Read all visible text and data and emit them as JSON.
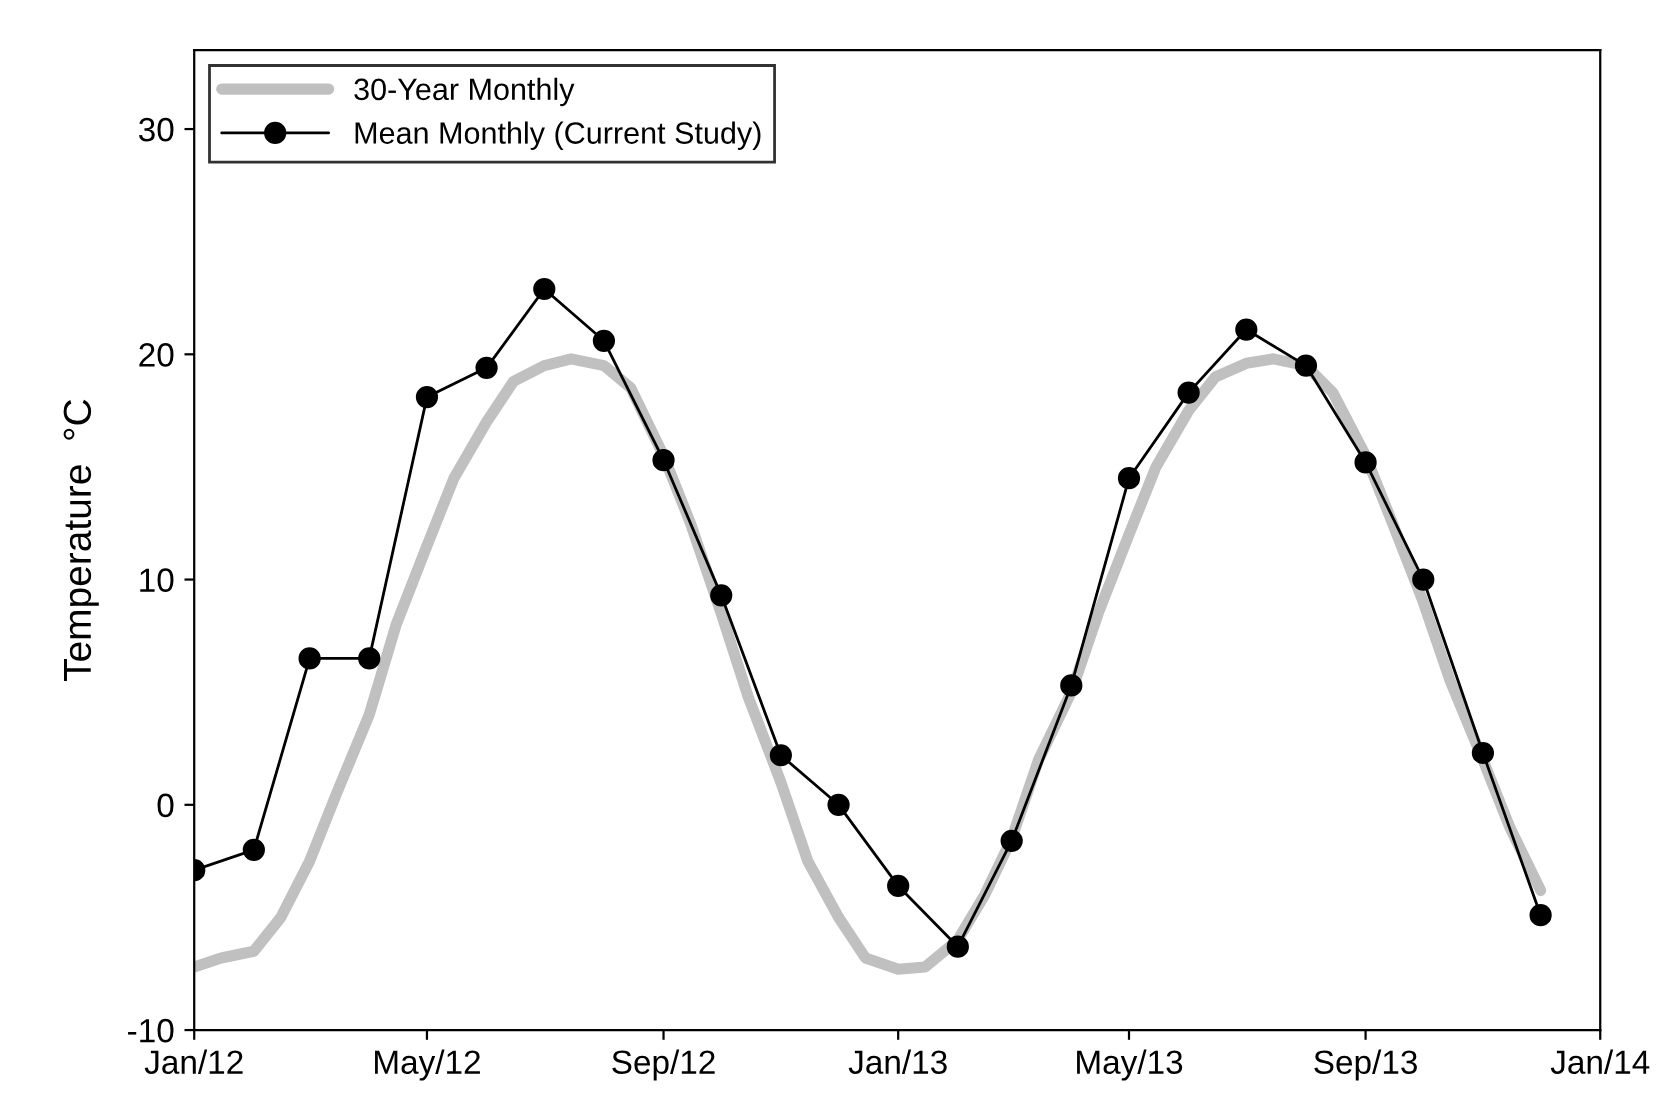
{
  "chart_data": {
    "type": "line",
    "ylabel": "Temperature  °C",
    "xlim": [
      "2012-01-01",
      "2014-01-01"
    ],
    "ylim": [
      -10,
      33.5
    ],
    "xticks": [
      {
        "value": "2012-01-01",
        "label": "Jan/12"
      },
      {
        "value": "2012-05-01",
        "label": "May/12"
      },
      {
        "value": "2012-09-01",
        "label": "Sep/12"
      },
      {
        "value": "2013-01-01",
        "label": "Jan/13"
      },
      {
        "value": "2013-05-01",
        "label": "May/13"
      },
      {
        "value": "2013-09-01",
        "label": "Sep/13"
      },
      {
        "value": "2014-01-01",
        "label": "Jan/14"
      }
    ],
    "yticks": [
      -10,
      0,
      10,
      20,
      30
    ],
    "grid": false,
    "legend": "top left",
    "series": [
      {
        "name": "30-Year Monthly",
        "color": "#c0c0c0",
        "marker": "none",
        "x": [
          "2012-01-01",
          "2012-01-15",
          "2012-02-01",
          "2012-02-15",
          "2012-03-01",
          "2012-03-15",
          "2012-04-01",
          "2012-04-15",
          "2012-05-01",
          "2012-05-15",
          "2012-06-01",
          "2012-06-15",
          "2012-07-01",
          "2012-07-15",
          "2012-08-01",
          "2012-08-15",
          "2012-09-01",
          "2012-09-15",
          "2012-10-01",
          "2012-10-15",
          "2012-11-01",
          "2012-11-15",
          "2012-12-01",
          "2012-12-15",
          "2013-01-01",
          "2013-01-15",
          "2013-02-01",
          "2013-02-15",
          "2013-03-01",
          "2013-03-15",
          "2013-04-01",
          "2013-04-15",
          "2013-05-01",
          "2013-05-15",
          "2013-06-01",
          "2013-06-15",
          "2013-07-01",
          "2013-07-15",
          "2013-08-01",
          "2013-08-15",
          "2013-09-01",
          "2013-09-15",
          "2013-10-01",
          "2013-10-15",
          "2013-11-01",
          "2013-11-15",
          "2013-12-01"
        ],
        "values": [
          -7.2,
          -6.8,
          -6.5,
          -5,
          -2.5,
          0.5,
          4,
          8,
          11.5,
          14.5,
          17,
          18.8,
          19.5,
          19.8,
          19.5,
          18.5,
          15.5,
          12.5,
          8.5,
          4.8,
          1,
          -2.5,
          -5,
          -6.8,
          -7.3,
          -7.2,
          -6,
          -4,
          -1.5,
          2,
          5,
          8.5,
          12,
          15,
          17.5,
          19,
          19.6,
          19.8,
          19.5,
          18.3,
          15.5,
          12.5,
          9,
          5.5,
          2,
          -1,
          -3.8
        ]
      },
      {
        "name": "Mean Monthly (Current Study)",
        "color": "#000000",
        "marker": "circle",
        "x": [
          "2012-01-01",
          "2012-02-01",
          "2012-03-01",
          "2012-04-01",
          "2012-05-01",
          "2012-06-01",
          "2012-07-01",
          "2012-08-01",
          "2012-09-01",
          "2012-10-01",
          "2012-11-01",
          "2012-12-01",
          "2013-01-01",
          "2013-02-01",
          "2013-03-01",
          "2013-04-01",
          "2013-05-01",
          "2013-06-01",
          "2013-07-01",
          "2013-08-01",
          "2013-09-01",
          "2013-10-01",
          "2013-11-01",
          "2013-12-01"
        ],
        "values": [
          -2.9,
          -2,
          6.5,
          6.5,
          18.1,
          19.4,
          22.9,
          20.6,
          15.3,
          9.3,
          2.2,
          0,
          -3.6,
          -6.3,
          -1.6,
          5.3,
          14.5,
          18.3,
          21.1,
          19.5,
          15.2,
          10,
          2.3,
          -4.9
        ]
      }
    ]
  }
}
